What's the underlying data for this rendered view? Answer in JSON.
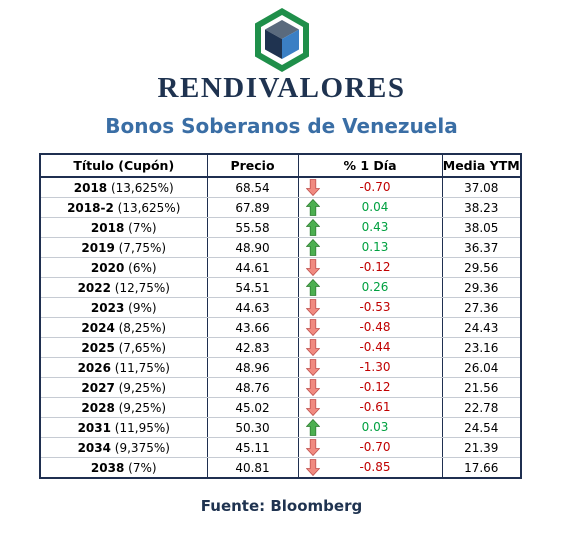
{
  "brand": "RENDIVALORES",
  "title": "Bonos Soberanos de Venezuela",
  "table": {
    "headers": [
      "Título (Cupón)",
      "Precio",
      "% 1 Día",
      "Media YTM"
    ],
    "rows": [
      {
        "year": "2018",
        "coupon": "(13,625%)",
        "price": "68.54",
        "direction": "down",
        "change": "-0.70",
        "ytm": "37.08"
      },
      {
        "year": "2018-2",
        "coupon": "(13,625%)",
        "price": "67.89",
        "direction": "up",
        "change": "0.04",
        "ytm": "38.23"
      },
      {
        "year": "2018",
        "coupon": "(7%)",
        "price": "55.58",
        "direction": "up",
        "change": "0.43",
        "ytm": "38.05"
      },
      {
        "year": "2019",
        "coupon": "(7,75%)",
        "price": "48.90",
        "direction": "up",
        "change": "0.13",
        "ytm": "36.37"
      },
      {
        "year": "2020",
        "coupon": "(6%)",
        "price": "44.61",
        "direction": "down",
        "change": "-0.12",
        "ytm": "29.56"
      },
      {
        "year": "2022",
        "coupon": "(12,75%)",
        "price": "54.51",
        "direction": "up",
        "change": "0.26",
        "ytm": "29.36"
      },
      {
        "year": "2023",
        "coupon": "(9%)",
        "price": "44.63",
        "direction": "down",
        "change": "-0.53",
        "ytm": "27.36"
      },
      {
        "year": "2024",
        "coupon": "(8,25%)",
        "price": "43.66",
        "direction": "down",
        "change": "-0.48",
        "ytm": "24.43"
      },
      {
        "year": "2025",
        "coupon": "(7,65%)",
        "price": "42.83",
        "direction": "down",
        "change": "-0.44",
        "ytm": "23.16"
      },
      {
        "year": "2026",
        "coupon": "(11,75%)",
        "price": "48.96",
        "direction": "down",
        "change": "-1.30",
        "ytm": "26.04"
      },
      {
        "year": "2027",
        "coupon": "(9,25%)",
        "price": "48.76",
        "direction": "down",
        "change": "-0.12",
        "ytm": "21.56"
      },
      {
        "year": "2028",
        "coupon": "(9,25%)",
        "price": "45.02",
        "direction": "down",
        "change": "-0.61",
        "ytm": "22.78"
      },
      {
        "year": "2031",
        "coupon": "(11,95%)",
        "price": "50.30",
        "direction": "up",
        "change": "0.03",
        "ytm": "24.54"
      },
      {
        "year": "2034",
        "coupon": "(9,375%)",
        "price": "45.11",
        "direction": "down",
        "change": "-0.70",
        "ytm": "21.39"
      },
      {
        "year": "2038",
        "coupon": "(7%)",
        "price": "40.81",
        "direction": "down",
        "change": "-0.85",
        "ytm": "17.66"
      }
    ]
  },
  "source": "Fuente: Bloomberg",
  "icons": {
    "logo": "cube-logo-icon",
    "up": "arrow-up-icon",
    "down": "arrow-down-icon"
  },
  "colors": {
    "brand_text": "#1f3350",
    "title_text": "#3a6ea5",
    "positive": "#00a040",
    "negative": "#c00000",
    "arrow_up": "#4caf50",
    "arrow_down": "#f08a80",
    "logo_green": "#1f8f4a",
    "logo_blue": "#3b7fc4",
    "logo_navy": "#1f3350"
  }
}
